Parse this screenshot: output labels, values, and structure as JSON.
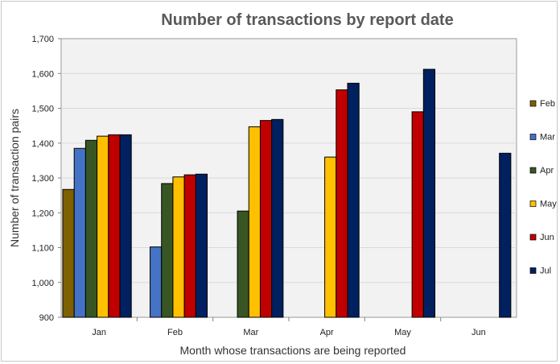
{
  "chart_data": {
    "type": "bar",
    "title": "Number of transactions by report date",
    "xlabel": "Month whose transactions are being reported",
    "ylabel": "Number of transaction pairs",
    "ylim": [
      900,
      1700
    ],
    "yticks": [
      900,
      1000,
      1100,
      1200,
      1300,
      1400,
      1500,
      1600,
      1700
    ],
    "ytick_labels": [
      "900",
      "1,000",
      "1,100",
      "1,200",
      "1,300",
      "1,400",
      "1,500",
      "1,600",
      "1,700"
    ],
    "categories": [
      "Jan",
      "Feb",
      "Mar",
      "Apr",
      "May",
      "Jun"
    ],
    "grid": true,
    "legend_position": "right",
    "series": [
      {
        "name": "Feb",
        "color": "#7F6000",
        "values": [
          1267,
          null,
          null,
          null,
          null,
          null
        ]
      },
      {
        "name": "Mar",
        "color": "#4472C4",
        "values": [
          1385,
          1102,
          null,
          null,
          null,
          null
        ]
      },
      {
        "name": "Apr",
        "color": "#375623",
        "values": [
          1408,
          1284,
          1205,
          null,
          null,
          null
        ]
      },
      {
        "name": "May",
        "color": "#FFC000",
        "values": [
          1420,
          1303,
          1447,
          1360,
          null,
          null
        ]
      },
      {
        "name": "Jun",
        "color": "#C00000",
        "values": [
          1424,
          1309,
          1465,
          1553,
          1490,
          null
        ]
      },
      {
        "name": "Jul",
        "color": "#002060",
        "values": [
          1424,
          1311,
          1468,
          1572,
          1612,
          1371
        ]
      }
    ]
  }
}
